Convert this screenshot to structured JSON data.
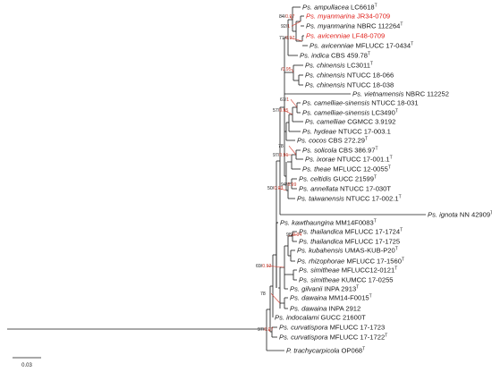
{
  "scale_bar": {
    "label": "0.03"
  },
  "taxa": [
    {
      "g": "Ps.",
      "s": "ampullacea",
      "c": "LC6618",
      "t": true,
      "hl": false
    },
    {
      "g": "Ps.",
      "s": "myanmarina",
      "c": "JR34-0709",
      "t": false,
      "hl": true
    },
    {
      "g": "Ps.",
      "s": "myanmarina",
      "c": "NBRC 112264",
      "t": true,
      "hl": false
    },
    {
      "g": "Ps.",
      "s": "avicenniae",
      "c": "LF48-0709",
      "t": false,
      "hl": true
    },
    {
      "g": "Ps.",
      "s": "avicenniae",
      "c": "MFLUCC 17-0434",
      "t": true,
      "hl": false
    },
    {
      "g": "Ps.",
      "s": "indica",
      "c": "CBS 459.78",
      "t": true,
      "hl": false
    },
    {
      "g": "Ps.",
      "s": "chinensis",
      "c": "LC3011",
      "t": true,
      "hl": false
    },
    {
      "g": "Ps.",
      "s": "chinensis",
      "c": "NTUCC 18-066",
      "t": false,
      "hl": false
    },
    {
      "g": "Ps.",
      "s": "chinensis",
      "c": "NTUCC 18-038",
      "t": false,
      "hl": false
    },
    {
      "g": "Ps.",
      "s": "vietnamensis",
      "c": "NBRC 112252",
      "t": false,
      "hl": false
    },
    {
      "g": "Ps.",
      "s": "camelliae-sinensis",
      "c": "NTUCC 18-031",
      "t": false,
      "hl": false
    },
    {
      "g": "Ps.",
      "s": "camelliae-sinensis",
      "c": "LC3490",
      "t": true,
      "hl": false
    },
    {
      "g": "Ps.",
      "s": "camelliae",
      "c": "CGMCC 3.9192",
      "t": false,
      "hl": false
    },
    {
      "g": "Ps.",
      "s": "hydeae",
      "c": "NTUCC 17-003.1",
      "t": false,
      "hl": false
    },
    {
      "g": "Ps.",
      "s": "cocos",
      "c": "CBS 272.29",
      "t": true,
      "hl": false
    },
    {
      "g": "Ps.",
      "s": "solicola",
      "c": "CBS 386.97",
      "t": true,
      "hl": false
    },
    {
      "g": "Ps.",
      "s": "ixorae",
      "c": "NTUCC 17-001.1",
      "t": true,
      "hl": false
    },
    {
      "g": "Ps.",
      "s": "theae",
      "c": "MFLUCC 12-0055",
      "t": true,
      "hl": false
    },
    {
      "g": "Ps.",
      "s": "celtidis",
      "c": "GUCC 21599",
      "t": true,
      "hl": false
    },
    {
      "g": "Ps.",
      "s": "annellata",
      "c": "NTUCC 17-030T",
      "t": false,
      "hl": false
    },
    {
      "g": "Ps.",
      "s": "taiwanensis",
      "c": "NTUCC 17-002.1",
      "t": true,
      "hl": false
    },
    {
      "g": "Ps.",
      "s": "ignota",
      "c": "NN 42909",
      "t": true,
      "hl": false
    },
    {
      "g": "Ps.",
      "s": "kawthaungina",
      "c": "MM14F0083",
      "t": true,
      "hl": false
    },
    {
      "g": "Ps.",
      "s": "thailandica",
      "c": "MFLUCC 17-1724",
      "t": true,
      "hl": false
    },
    {
      "g": "Ps.",
      "s": "thailandica",
      "c": "MFLUCC 17-1725",
      "t": false,
      "hl": false
    },
    {
      "g": "Ps.",
      "s": "kubahensis",
      "c": "UMAS-KUB-P20",
      "t": true,
      "hl": false
    },
    {
      "g": "Ps.",
      "s": "rhizophorae",
      "c": "MFLUCC 17-1560",
      "t": true,
      "hl": false
    },
    {
      "g": "Ps.",
      "s": "simitheae",
      "c": "MFLUCC12-0121",
      "t": true,
      "hl": false
    },
    {
      "g": "Ps.",
      "s": "simitheae",
      "c": "KUMCC 17-0255",
      "t": false,
      "hl": false
    },
    {
      "g": "Ps.",
      "s": "gilvanii",
      "c": "INPA 2913",
      "t": true,
      "hl": false
    },
    {
      "g": "Ps.",
      "s": "dawaina",
      "c": "MM14-F0015",
      "t": true,
      "hl": false
    },
    {
      "g": "Ps.",
      "s": "dawaina",
      "c": "INPA 2912",
      "t": false,
      "hl": false
    },
    {
      "g": "Ps.",
      "s": "indocalami",
      "c": "GUCC 21600T",
      "t": false,
      "hl": false
    },
    {
      "g": "Ps.",
      "s": "curvatispora",
      "c": "MFLUCC 17-1723",
      "t": false,
      "hl": false
    },
    {
      "g": "Ps.",
      "s": "curvatispora",
      "c": "MFLUCC 17-1722",
      "t": true,
      "hl": false
    },
    {
      "g": "P.",
      "s": "trachycarpicola",
      "c": "OP068",
      "t": true,
      "hl": false
    }
  ],
  "supports": [
    {
      "a": "84",
      "b": "0.97"
    },
    {
      "a": "92",
      "b": "1"
    },
    {
      "a": "71",
      "b": "0.97"
    },
    {
      "a": "",
      "b": "0.95"
    },
    {
      "a": "67",
      "b": "1"
    },
    {
      "a": "57",
      "b": "0.95"
    },
    {
      "a": "78",
      "b": ""
    },
    {
      "a": "97",
      "b": "0.91"
    },
    {
      "a": "94",
      "b": "0.99"
    },
    {
      "a": "50",
      "b": "0.93"
    },
    {
      "a": "98",
      "b": "0.94"
    },
    {
      "a": "69",
      "b": "0.92"
    },
    {
      "a": "78",
      "b": ""
    },
    {
      "a": "97",
      "b": "0.97"
    }
  ]
}
